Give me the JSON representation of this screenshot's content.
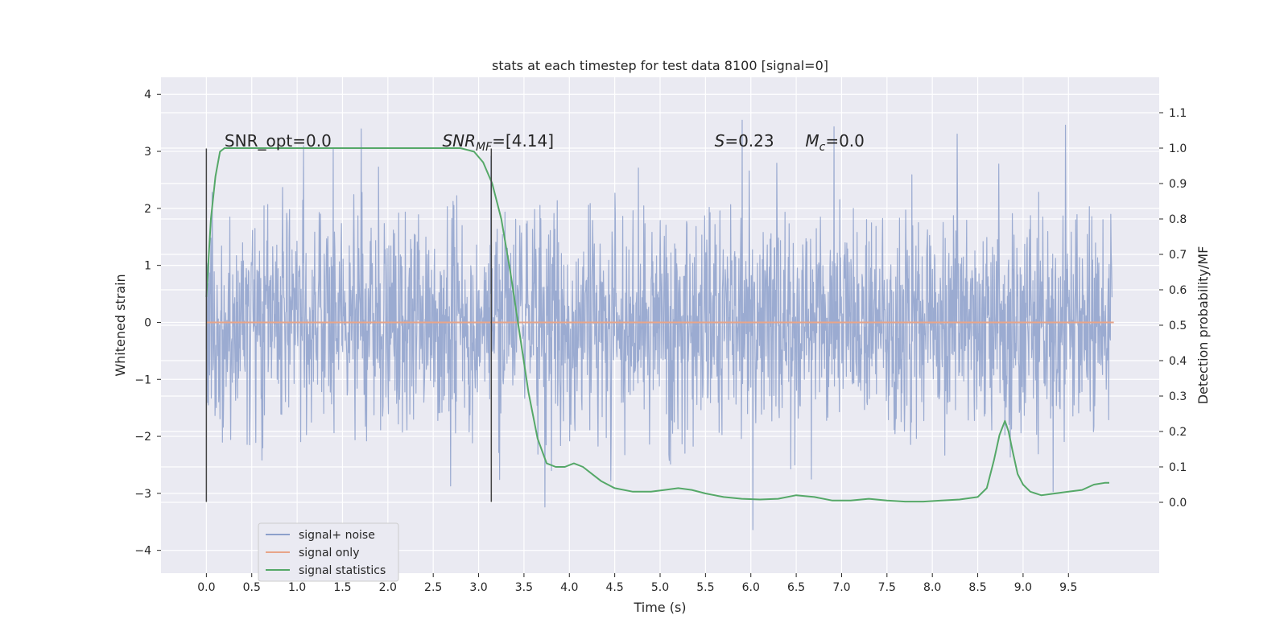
{
  "chart_data": {
    "type": "line",
    "title": "stats at each timestep for test data 8100 [signal=0]",
    "xlabel": "Time (s)",
    "ylabel": "Whitened strain",
    "y2label": "Detection probability/MF",
    "xlim": [
      -0.5,
      10.5
    ],
    "ylim": [
      -4.4,
      4.3
    ],
    "y2lim": [
      -0.2,
      1.2
    ],
    "x_ticks": [
      0.0,
      0.5,
      1.0,
      1.5,
      2.0,
      2.5,
      3.0,
      3.5,
      4.0,
      4.5,
      5.0,
      5.5,
      6.0,
      6.5,
      7.0,
      7.5,
      8.0,
      8.5,
      9.0,
      9.5
    ],
    "y_ticks": [
      -4,
      -3,
      -2,
      -1,
      0,
      1,
      2,
      3,
      4
    ],
    "y2_ticks": [
      0.0,
      0.1,
      0.2,
      0.3,
      0.4,
      0.5,
      0.6,
      0.7,
      0.8,
      0.9,
      1.0,
      1.1
    ],
    "grid": true,
    "legend_position": "lower-left",
    "annotations": [
      {
        "main": "SNR_opt=0.0",
        "x": 0.2,
        "y2": 1.0
      },
      {
        "main": "SNR",
        "sub": "MF",
        "rest": "=[4.14]",
        "x": 2.6,
        "y2": 1.0
      },
      {
        "main": "S",
        "rest": "=0.23",
        "x": 5.6,
        "y2": 1.0
      },
      {
        "main": "M",
        "sub": "c",
        "rest": "=0.0",
        "x": 6.6,
        "y2": 1.0
      }
    ],
    "vlines": [
      {
        "x": 0.0,
        "y": [
          -3.15,
          3.05
        ]
      },
      {
        "x": 3.14,
        "y": [
          -3.15,
          3.05
        ]
      }
    ],
    "series": [
      {
        "name": "signal+ noise",
        "axis": "left",
        "color": "#8da0cb",
        "x_start": 0.0,
        "x_end": 9.98,
        "samples": 2200,
        "stddev": 1.0,
        "noise_seed": 8100
      },
      {
        "name": "signal only",
        "axis": "left",
        "color": "#e8a589",
        "x": [
          0.0,
          10.0
        ],
        "y": [
          0.0,
          0.0
        ]
      },
      {
        "name": "signal statistics",
        "axis": "right",
        "color": "#55a868",
        "x": [
          0.0,
          0.05,
          0.1,
          0.15,
          0.2,
          0.3,
          0.5,
          1.0,
          1.5,
          2.0,
          2.5,
          2.8,
          2.95,
          3.05,
          3.15,
          3.25,
          3.35,
          3.45,
          3.55,
          3.65,
          3.75,
          3.85,
          3.95,
          4.05,
          4.15,
          4.25,
          4.35,
          4.5,
          4.7,
          4.9,
          5.05,
          5.2,
          5.35,
          5.5,
          5.7,
          5.9,
          6.1,
          6.3,
          6.5,
          6.7,
          6.9,
          7.1,
          7.3,
          7.5,
          7.7,
          7.9,
          8.1,
          8.3,
          8.5,
          8.6,
          8.68,
          8.74,
          8.8,
          8.84,
          8.88,
          8.94,
          9.0,
          9.08,
          9.2,
          9.35,
          9.5,
          9.65,
          9.78,
          9.9,
          9.95
        ],
        "y": [
          0.58,
          0.8,
          0.92,
          0.99,
          1.0,
          1.0,
          1.0,
          1.0,
          1.0,
          1.0,
          1.0,
          1.0,
          0.99,
          0.96,
          0.9,
          0.8,
          0.65,
          0.48,
          0.31,
          0.18,
          0.11,
          0.1,
          0.1,
          0.11,
          0.1,
          0.08,
          0.06,
          0.04,
          0.03,
          0.03,
          0.035,
          0.04,
          0.035,
          0.025,
          0.015,
          0.01,
          0.008,
          0.01,
          0.02,
          0.015,
          0.005,
          0.005,
          0.01,
          0.005,
          0.002,
          0.002,
          0.005,
          0.008,
          0.015,
          0.04,
          0.12,
          0.19,
          0.23,
          0.2,
          0.15,
          0.08,
          0.05,
          0.03,
          0.02,
          0.025,
          0.03,
          0.035,
          0.05,
          0.055,
          0.055
        ]
      }
    ]
  }
}
